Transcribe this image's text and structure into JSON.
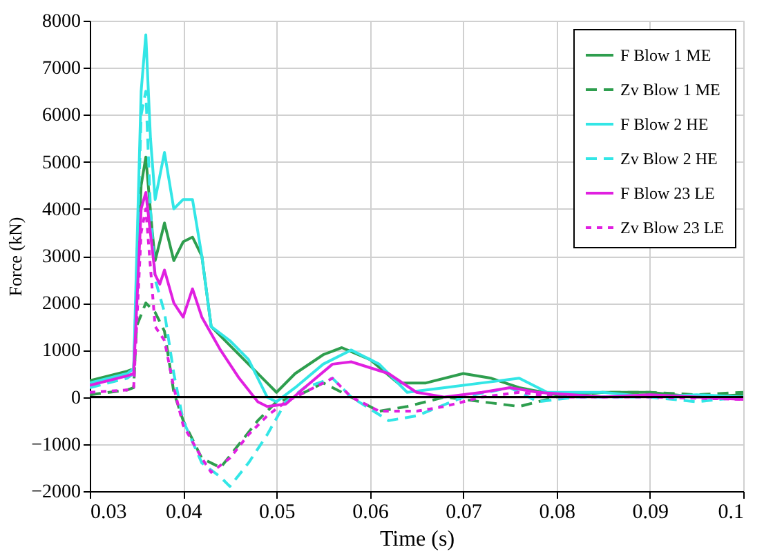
{
  "chart_data": {
    "type": "line",
    "xlabel": "Time (s)",
    "ylabel": "Force (kN)",
    "xlim": [
      0.03,
      0.1
    ],
    "xticks": [
      0.03,
      0.04,
      0.05,
      0.06,
      0.07,
      0.08,
      0.09,
      0.1
    ],
    "ylim": [
      -2000,
      8000
    ],
    "yticks": [
      -2000,
      -1000,
      0,
      1000,
      2000,
      3000,
      4000,
      5000,
      6000,
      7000,
      8000
    ],
    "grid": true,
    "legend": "top right",
    "ref_lines": [
      {
        "axis": "y",
        "value": 0,
        "color": "#000000"
      }
    ],
    "series": [
      {
        "name": "F Blow 1 ME",
        "color": "#2e9e4e",
        "line_style": "solid",
        "x": [
          0.03,
          0.034,
          0.0347,
          0.0355,
          0.036,
          0.0367,
          0.037,
          0.038,
          0.039,
          0.04,
          0.041,
          0.042,
          0.043,
          0.045,
          0.047,
          0.049,
          0.05,
          0.052,
          0.055,
          0.057,
          0.06,
          0.063,
          0.066,
          0.07,
          0.073,
          0.076,
          0.08,
          0.085,
          0.09,
          0.095,
          0.1
        ],
        "values": [
          350,
          550,
          600,
          4500,
          5100,
          3500,
          2900,
          3700,
          2900,
          3300,
          3400,
          3000,
          1500,
          1100,
          700,
          300,
          100,
          500,
          900,
          1050,
          800,
          300,
          300,
          500,
          400,
          200,
          50,
          100,
          100,
          0,
          50
        ]
      },
      {
        "name": "Zv Blow 1 ME",
        "color": "#2e9e4e",
        "line_style": "dashed",
        "x": [
          0.03,
          0.034,
          0.0347,
          0.035,
          0.036,
          0.037,
          0.038,
          0.039,
          0.04,
          0.042,
          0.044,
          0.046,
          0.048,
          0.05,
          0.052,
          0.055,
          0.058,
          0.061,
          0.064,
          0.068,
          0.072,
          0.076,
          0.08,
          0.085,
          0.09,
          0.095,
          0.1
        ],
        "values": [
          50,
          150,
          200,
          1500,
          2000,
          1800,
          1400,
          100,
          -500,
          -1300,
          -1500,
          -1000,
          -500,
          -100,
          0,
          300,
          0,
          -300,
          -200,
          0,
          -100,
          -200,
          0,
          100,
          100,
          50,
          100
        ]
      },
      {
        "name": "F Blow 2 HE",
        "color": "#33e6e6",
        "line_style": "solid",
        "x": [
          0.03,
          0.034,
          0.0347,
          0.0355,
          0.036,
          0.0365,
          0.037,
          0.038,
          0.039,
          0.04,
          0.041,
          0.042,
          0.043,
          0.045,
          0.047,
          0.049,
          0.05,
          0.052,
          0.055,
          0.058,
          0.061,
          0.064,
          0.068,
          0.072,
          0.076,
          0.079,
          0.085,
          0.09,
          0.095,
          0.1
        ],
        "values": [
          300,
          500,
          600,
          6500,
          7700,
          5500,
          4200,
          5200,
          4000,
          4200,
          4200,
          3000,
          1500,
          1200,
          800,
          0,
          -100,
          200,
          700,
          1000,
          700,
          100,
          200,
          300,
          400,
          100,
          100,
          0,
          50,
          0
        ]
      },
      {
        "name": "Zv Blow 2 HE",
        "color": "#33e6e6",
        "line_style": "dashed",
        "x": [
          0.03,
          0.034,
          0.0347,
          0.0355,
          0.036,
          0.0365,
          0.037,
          0.038,
          0.039,
          0.04,
          0.042,
          0.044,
          0.045,
          0.047,
          0.049,
          0.051,
          0.053,
          0.056,
          0.058,
          0.062,
          0.065,
          0.07,
          0.075,
          0.078,
          0.082,
          0.09,
          0.095,
          0.1
        ],
        "values": [
          200,
          400,
          500,
          6000,
          6500,
          4000,
          2500,
          1800,
          500,
          -500,
          -1400,
          -1700,
          -1900,
          -1400,
          -800,
          -100,
          200,
          400,
          0,
          -500,
          -400,
          0,
          200,
          -100,
          0,
          0,
          -100,
          0
        ]
      },
      {
        "name": "F Blow 23 LE",
        "color": "#e020e0",
        "line_style": "solid",
        "x": [
          0.03,
          0.034,
          0.0347,
          0.0355,
          0.036,
          0.037,
          0.0375,
          0.038,
          0.039,
          0.04,
          0.041,
          0.042,
          0.044,
          0.046,
          0.048,
          0.049,
          0.051,
          0.053,
          0.056,
          0.058,
          0.062,
          0.065,
          0.068,
          0.072,
          0.075,
          0.078,
          0.085,
          0.09,
          0.095,
          0.1
        ],
        "values": [
          250,
          450,
          500,
          4000,
          4350,
          2600,
          2400,
          2700,
          2000,
          1700,
          2300,
          1700,
          1000,
          400,
          -100,
          -200,
          -150,
          200,
          700,
          750,
          500,
          100,
          0,
          100,
          200,
          100,
          0,
          50,
          0,
          -50
        ]
      },
      {
        "name": "Zv Blow 23 LE",
        "color": "#e020e0",
        "line_style": "dotted",
        "x": [
          0.03,
          0.034,
          0.0347,
          0.0355,
          0.036,
          0.037,
          0.038,
          0.039,
          0.04,
          0.042,
          0.043,
          0.045,
          0.047,
          0.049,
          0.051,
          0.054,
          0.056,
          0.058,
          0.061,
          0.065,
          0.068,
          0.072,
          0.076,
          0.08,
          0.09,
          0.1
        ],
        "values": [
          100,
          150,
          200,
          3500,
          4000,
          1500,
          1200,
          200,
          -600,
          -1300,
          -1600,
          -1300,
          -800,
          -400,
          -100,
          200,
          400,
          0,
          -300,
          -300,
          -200,
          0,
          100,
          0,
          0,
          -50
        ]
      }
    ]
  }
}
